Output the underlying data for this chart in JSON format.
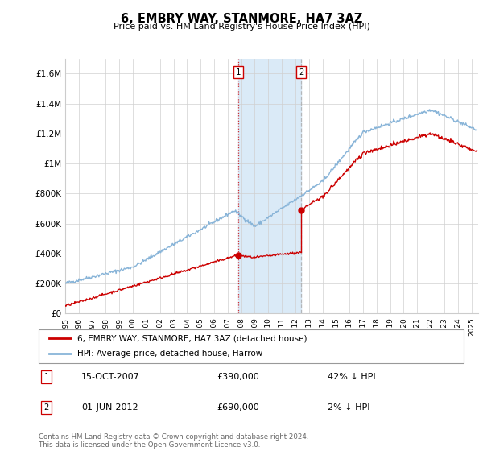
{
  "title": "6, EMBRY WAY, STANMORE, HA7 3AZ",
  "subtitle": "Price paid vs. HM Land Registry's House Price Index (HPI)",
  "legend_label_red": "6, EMBRY WAY, STANMORE, HA7 3AZ (detached house)",
  "legend_label_blue": "HPI: Average price, detached house, Harrow",
  "annotation1_date": "15-OCT-2007",
  "annotation1_price": "£390,000",
  "annotation1_hpi": "42% ↓ HPI",
  "annotation1_year": 2007.79,
  "annotation1_value": 390000,
  "annotation2_date": "01-JUN-2012",
  "annotation2_price": "£690,000",
  "annotation2_hpi": "2% ↓ HPI",
  "annotation2_year": 2012.42,
  "annotation2_value": 690000,
  "xmin": 1995,
  "xmax": 2025.5,
  "ymin": 0,
  "ymax": 1700000,
  "yticks": [
    0,
    200000,
    400000,
    600000,
    800000,
    1000000,
    1200000,
    1400000,
    1600000
  ],
  "ytick_labels": [
    "£0",
    "£200K",
    "£400K",
    "£600K",
    "£800K",
    "£1M",
    "£1.2M",
    "£1.4M",
    "£1.6M"
  ],
  "xticks": [
    1995,
    1996,
    1997,
    1998,
    1999,
    2000,
    2001,
    2002,
    2003,
    2004,
    2005,
    2006,
    2007,
    2008,
    2009,
    2010,
    2011,
    2012,
    2013,
    2014,
    2015,
    2016,
    2017,
    2018,
    2019,
    2020,
    2021,
    2022,
    2023,
    2024,
    2025
  ],
  "highlight_xmin": 2007.79,
  "highlight_xmax": 2012.42,
  "red_color": "#cc0000",
  "blue_color": "#88b4d8",
  "highlight_color": "#daeaf7",
  "vline1_color": "#cc0000",
  "vline2_color": "#aaaaaa",
  "footnote": "Contains HM Land Registry data © Crown copyright and database right 2024.\nThis data is licensed under the Open Government Licence v3.0."
}
